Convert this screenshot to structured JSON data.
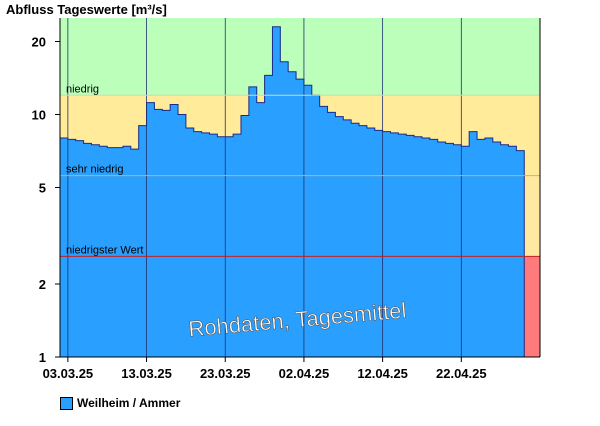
{
  "chart_data": {
    "type": "area",
    "title": "Abfluss Tageswerte [m³/s]",
    "y_scale": "log",
    "ylim": [
      1,
      25
    ],
    "y_ticks": [
      1,
      2,
      5,
      10,
      20
    ],
    "x_range": [
      "2025-03-02",
      "2025-05-02"
    ],
    "x_tick_labels": [
      {
        "date": "2025-03-03",
        "label": "03.03.25"
      },
      {
        "date": "2025-03-13",
        "label": "13.03.25"
      },
      {
        "date": "2025-03-23",
        "label": "23.03.25"
      },
      {
        "date": "2025-04-02",
        "label": "02.04.25"
      },
      {
        "date": "2025-04-12",
        "label": "12.04.25"
      },
      {
        "date": "2025-04-22",
        "label": "22.04.25"
      }
    ],
    "thresholds": [
      {
        "label": "niedrig",
        "value": 12.0,
        "color": "#ffeb99"
      },
      {
        "label": "sehr niedrig",
        "value": 5.6,
        "color": "#ffe9a0"
      },
      {
        "label": "niedrigster Wert",
        "value": 2.6,
        "color": "#ff7a7a"
      }
    ],
    "band_colors": {
      "normal": "#bbffbb",
      "low": "#ffeb99",
      "area": "#299fff",
      "edge": "#1b2a8a"
    },
    "series": [
      {
        "name": "Weilheim / Ammer",
        "color": "#299fff",
        "start_date": "2025-03-02",
        "values": [
          8.0,
          7.9,
          7.8,
          7.6,
          7.5,
          7.4,
          7.3,
          7.3,
          7.4,
          7.2,
          9.0,
          11.2,
          10.5,
          10.4,
          11.0,
          10.0,
          8.8,
          8.5,
          8.4,
          8.3,
          8.1,
          8.1,
          8.3,
          9.9,
          13.0,
          11.2,
          14.5,
          23.0,
          16.5,
          15.0,
          14.0,
          13.2,
          12.0,
          10.8,
          10.2,
          9.8,
          9.5,
          9.2,
          9.0,
          8.8,
          8.6,
          8.5,
          8.4,
          8.3,
          8.2,
          8.1,
          8.0,
          7.9,
          7.7,
          7.6,
          7.5,
          7.4,
          8.5,
          7.9,
          8.0,
          7.7,
          7.5,
          7.4,
          7.1
        ]
      }
    ],
    "legend": {
      "position": "bottom-left",
      "entries": [
        "Weilheim / Ammer"
      ]
    },
    "watermark": "Rohdaten, Tagesmittel"
  }
}
